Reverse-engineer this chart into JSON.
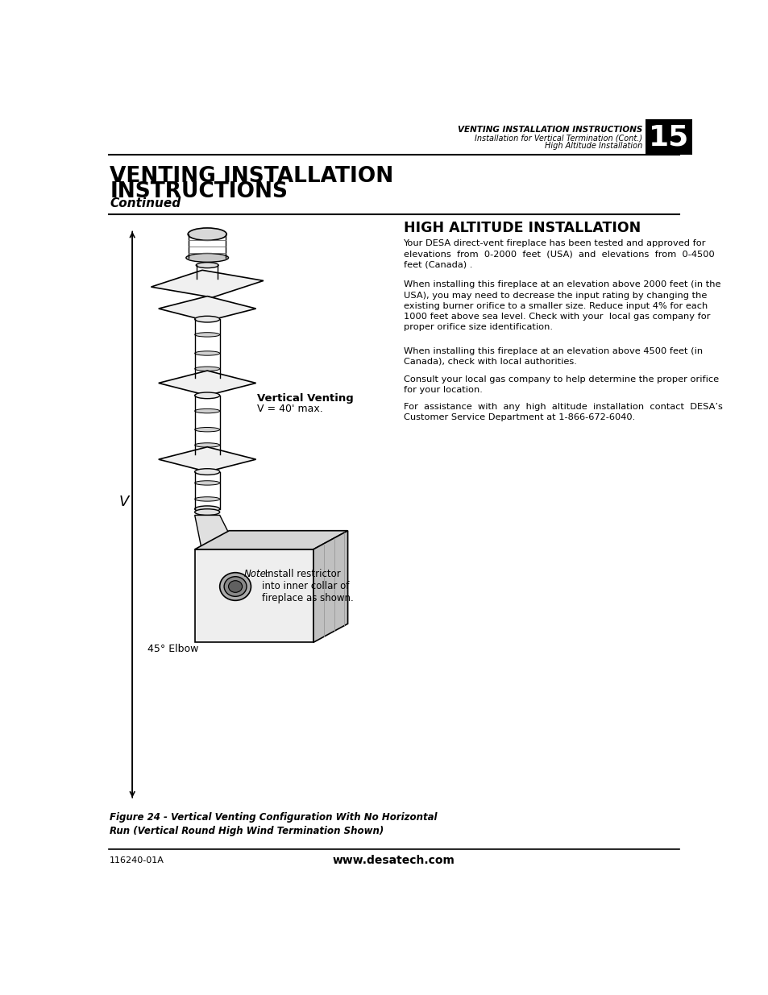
{
  "page_title_line1": "VENTING INSTALLATION INSTRUCTIONS",
  "page_title_line2": "Installation for Vertical Termination (Cont.)",
  "page_title_line3": "High Altitude Installation",
  "page_number": "15",
  "section_title_left_line1": "VENTING INSTALLATION",
  "section_title_left_line2": "INSTRUCTIONS",
  "section_subtitle_left": "Continued",
  "section_title_right": "HIGH ALTITUDE INSTALLATION",
  "right_para1": "Your DESA direct-vent fireplace has been tested and approved for\nelevations  from  0-2000  feet  (USA)  and  elevations  from  0-4500\nfeet (Canada) .",
  "right_para2": "When installing this fireplace at an elevation above 2000 feet (in the\nUSA), you may need to decrease the input rating by changing the\nexisting burner orifice to a smaller size. Reduce input 4% for each\n1000 feet above sea level. Check with your  local gas company for\nproper orifice size identification.",
  "right_para3": "When installing this fireplace at an elevation above 4500 feet (in\nCanada), check with local authorities.",
  "right_para4": "Consult your local gas company to help determine the proper orifice\nfor your location.",
  "right_para5": "For  assistance  with  any  high  altitude  installation  contact  DESA’s\nCustomer Service Department at 1-866-672-6040.",
  "vertical_venting_label": "Vertical Venting",
  "vertical_venting_v": "V = 40' max.",
  "note_label": "Note:",
  "note_text": " Install restrictor\ninto inner collar of\nfireplace as shown.",
  "elbow_label": "45° Elbow",
  "figure_caption": "Figure 24 - Vertical Venting Configuration With No Horizontal\nRun (Vertical Round High Wind Termination Shown)",
  "footer_left": "116240-01A",
  "footer_center": "www.desatech.com",
  "bg_color": "#ffffff",
  "text_color": "#000000"
}
